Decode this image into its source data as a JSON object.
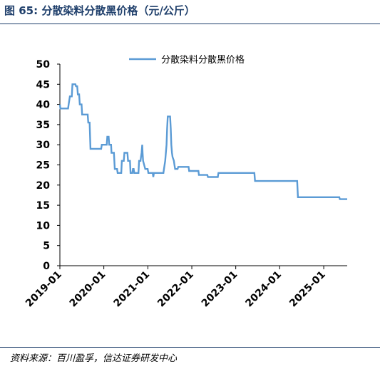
{
  "figure": {
    "title": "图 65:  分散染料分散黑价格（元/公斤）",
    "source": "资料来源：百川盈孚，信达证券研发中心"
  },
  "colors": {
    "line": "#5b9bd5",
    "title": "#1f3f6b",
    "axis": "#000000"
  },
  "chart_data": {
    "type": "line",
    "title": "",
    "xlabel": "",
    "ylabel": "",
    "ylim": [
      0,
      50
    ],
    "yticks": [
      0,
      5,
      10,
      15,
      20,
      25,
      30,
      35,
      40,
      45,
      50
    ],
    "xlim": [
      "2019-01-01",
      "2025-07-15"
    ],
    "xticks": [
      "2019-01",
      "2020-01",
      "2021-01",
      "2022-01",
      "2023-01",
      "2024-01",
      "2025-01"
    ],
    "legend": "top-center",
    "grid": false,
    "series": [
      {
        "name": "分散染料分散黑价格",
        "points": [
          [
            "2019-01-01",
            40
          ],
          [
            "2019-01-05",
            39
          ],
          [
            "2019-03-10",
            39
          ],
          [
            "2019-03-15",
            40
          ],
          [
            "2019-03-25",
            42
          ],
          [
            "2019-04-10",
            42
          ],
          [
            "2019-04-15",
            45
          ],
          [
            "2019-05-10",
            45
          ],
          [
            "2019-05-15",
            44.5
          ],
          [
            "2019-05-25",
            44.5
          ],
          [
            "2019-05-30",
            42.5
          ],
          [
            "2019-06-10",
            42.5
          ],
          [
            "2019-06-15",
            40
          ],
          [
            "2019-06-30",
            40
          ],
          [
            "2019-07-05",
            37.5
          ],
          [
            "2019-08-20",
            37.5
          ],
          [
            "2019-08-25",
            35.5
          ],
          [
            "2019-09-05",
            35.5
          ],
          [
            "2019-09-12",
            29
          ],
          [
            "2019-12-10",
            29
          ],
          [
            "2019-12-15",
            30
          ],
          [
            "2020-01-25",
            30
          ],
          [
            "2020-01-30",
            32
          ],
          [
            "2020-02-10",
            32
          ],
          [
            "2020-02-15",
            30
          ],
          [
            "2020-03-01",
            30
          ],
          [
            "2020-03-05",
            28
          ],
          [
            "2020-03-25",
            28
          ],
          [
            "2020-04-01",
            24
          ],
          [
            "2020-04-20",
            24
          ],
          [
            "2020-04-25",
            23
          ],
          [
            "2020-05-25",
            23
          ],
          [
            "2020-05-30",
            26
          ],
          [
            "2020-06-15",
            26
          ],
          [
            "2020-06-20",
            28
          ],
          [
            "2020-07-15",
            28
          ],
          [
            "2020-07-20",
            26
          ],
          [
            "2020-08-05",
            26
          ],
          [
            "2020-08-10",
            23
          ],
          [
            "2020-08-25",
            23
          ],
          [
            "2020-08-30",
            24
          ],
          [
            "2020-09-05",
            24
          ],
          [
            "2020-09-10",
            23
          ],
          [
            "2020-10-15",
            23
          ],
          [
            "2020-10-20",
            26
          ],
          [
            "2020-11-01",
            26
          ],
          [
            "2020-11-05",
            27
          ],
          [
            "2020-11-10",
            28
          ],
          [
            "2020-11-15",
            30
          ],
          [
            "2020-11-18",
            28
          ],
          [
            "2020-11-22",
            26
          ],
          [
            "2020-12-01",
            25
          ],
          [
            "2020-12-10",
            24
          ],
          [
            "2020-12-30",
            24
          ],
          [
            "2021-01-05",
            23
          ],
          [
            "2021-02-10",
            23
          ],
          [
            "2021-02-15",
            22
          ],
          [
            "2021-02-20",
            23
          ],
          [
            "2021-05-10",
            23
          ],
          [
            "2021-05-15",
            24
          ],
          [
            "2021-05-25",
            26
          ],
          [
            "2021-06-05",
            30
          ],
          [
            "2021-06-10",
            34
          ],
          [
            "2021-06-15",
            37
          ],
          [
            "2021-07-05",
            37
          ],
          [
            "2021-07-10",
            34
          ],
          [
            "2021-07-15",
            30
          ],
          [
            "2021-07-20",
            28
          ],
          [
            "2021-07-25",
            27
          ],
          [
            "2021-08-05",
            26
          ],
          [
            "2021-08-10",
            25
          ],
          [
            "2021-08-15",
            24
          ],
          [
            "2021-09-05",
            24
          ],
          [
            "2021-09-10",
            24.5
          ],
          [
            "2021-12-05",
            24.5
          ],
          [
            "2021-12-10",
            23.5
          ],
          [
            "2022-02-25",
            23.5
          ],
          [
            "2022-03-01",
            22.5
          ],
          [
            "2022-05-10",
            22.5
          ],
          [
            "2022-05-15",
            22
          ],
          [
            "2022-08-05",
            22
          ],
          [
            "2022-08-10",
            23
          ],
          [
            "2023-06-05",
            23
          ],
          [
            "2023-06-10",
            21
          ],
          [
            "2024-05-25",
            21
          ],
          [
            "2024-06-01",
            17
          ],
          [
            "2025-05-10",
            17
          ],
          [
            "2025-05-15",
            16.5
          ],
          [
            "2025-07-15",
            16.5
          ]
        ]
      }
    ]
  }
}
